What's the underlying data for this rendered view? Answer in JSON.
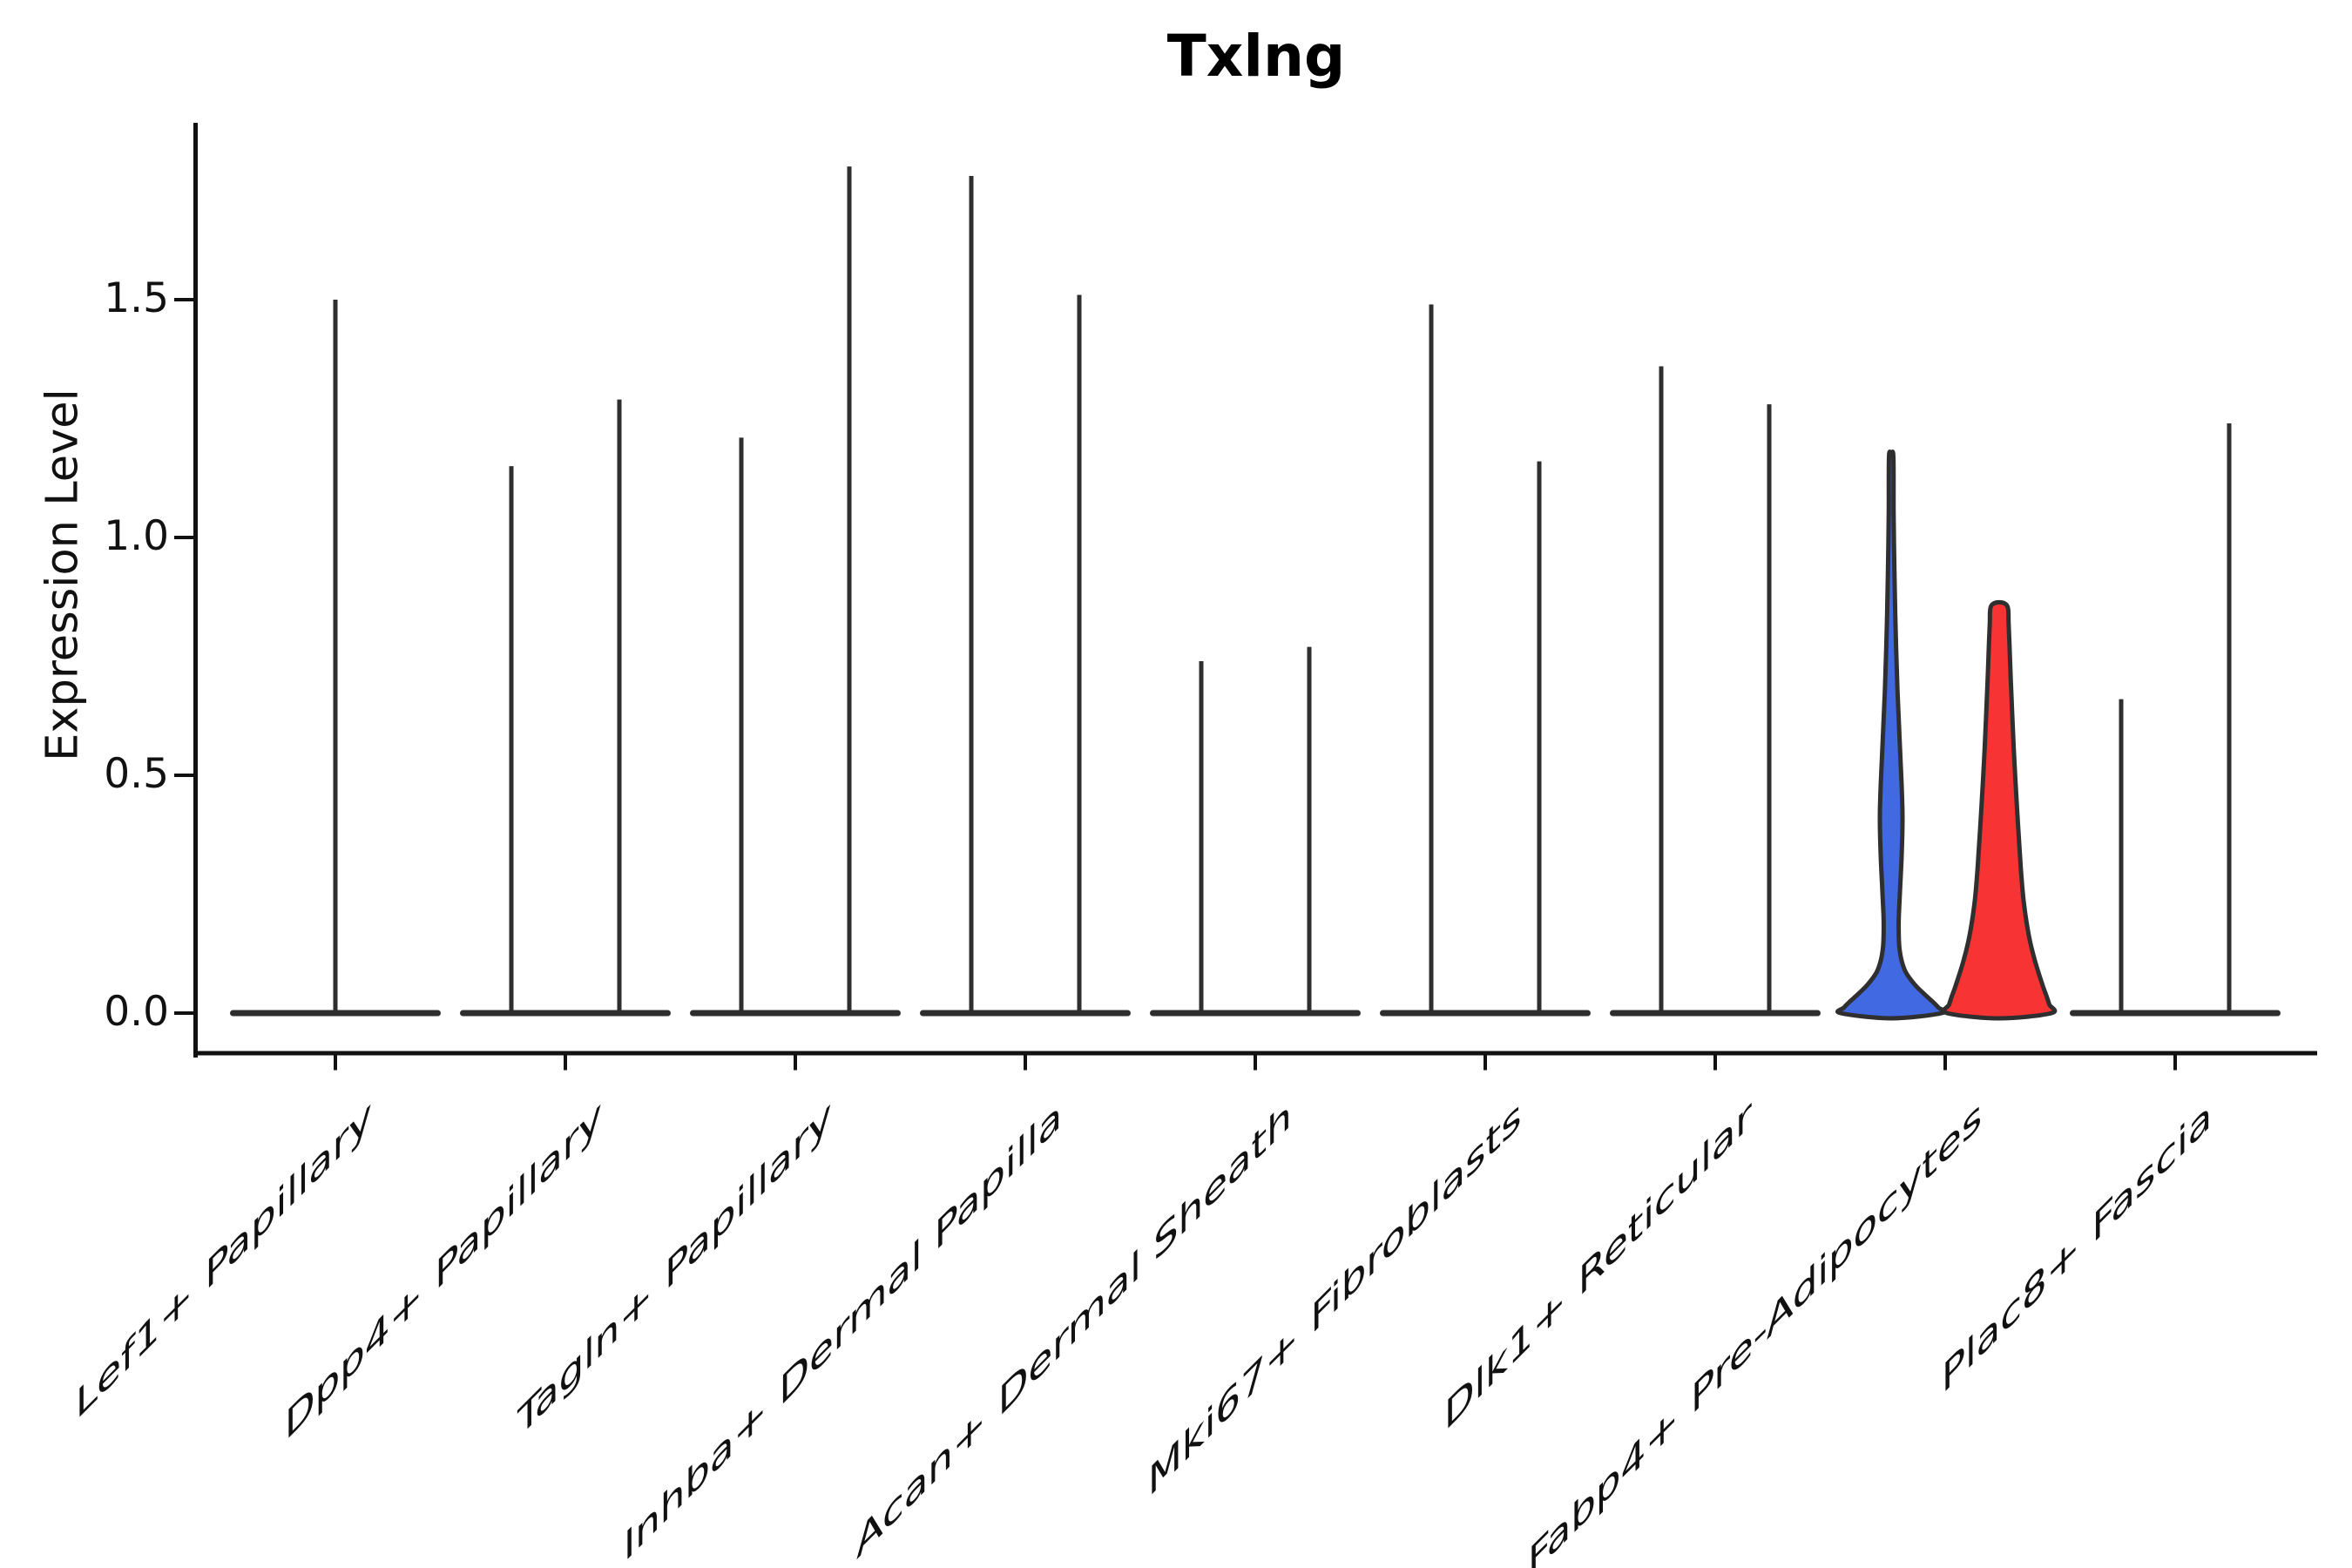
{
  "figure": {
    "title": "Txlng",
    "ylabel": "Expression Level"
  },
  "chart_data": {
    "type": "violin",
    "title": "Txlng",
    "xlabel": "",
    "ylabel": "Expression Level",
    "ytick_labels": [
      "0.0",
      "0.5",
      "1.0",
      "1.5"
    ],
    "ytick_values": [
      0.0,
      0.5,
      1.0,
      1.5
    ],
    "ylim": [
      -0.09,
      1.87
    ],
    "grid": false,
    "legend_position": "none",
    "split_violins": true,
    "colors": {
      "spike": "#2e2e2e",
      "outline": "#2f2f2f",
      "axis": "#111111",
      "left_fill": "#4169E1",
      "right_fill": "#F73333"
    },
    "categories": [
      "Lef1+ Papillary",
      "Dpp4+ Papillary",
      "Tagln+ Papillary",
      "Inhba+ Dermal Papilla",
      "Acan+ Dermal Sheath",
      "Mki67+ Fibroblasts",
      "Dlk1+ Reticular",
      "Fabp4+ Pre-Adipocytes",
      "Plac8+ Fascia"
    ],
    "violins": [
      {
        "category": "Lef1+ Papillary",
        "layout": "single",
        "single": {
          "max": 1.5,
          "style": "spike"
        }
      },
      {
        "category": "Dpp4+ Papillary",
        "layout": "split",
        "left": {
          "max": 1.15,
          "style": "spike"
        },
        "right": {
          "max": 1.29,
          "style": "spike"
        }
      },
      {
        "category": "Tagln+ Papillary",
        "layout": "split",
        "left": {
          "max": 1.21,
          "style": "spike"
        },
        "right": {
          "max": 1.78,
          "style": "spike"
        }
      },
      {
        "category": "Inhba+ Dermal Papilla",
        "layout": "split",
        "left": {
          "max": 1.76,
          "style": "spike"
        },
        "right": {
          "max": 1.51,
          "style": "spike"
        }
      },
      {
        "category": "Acan+ Dermal Sheath",
        "layout": "split",
        "left": {
          "max": 0.74,
          "style": "spike"
        },
        "right": {
          "max": 0.77,
          "style": "spike"
        }
      },
      {
        "category": "Mki67+ Fibroblasts",
        "layout": "split",
        "left": {
          "max": 1.49,
          "style": "spike"
        },
        "right": {
          "max": 1.16,
          "style": "spike"
        }
      },
      {
        "category": "Dlk1+ Reticular",
        "layout": "split",
        "left": {
          "max": 1.36,
          "style": "spike"
        },
        "right": {
          "max": 1.28,
          "style": "spike"
        }
      },
      {
        "category": "Fabp4+ Pre-Adipocytes",
        "layout": "split",
        "left": {
          "max": 1.17,
          "style": "filled",
          "fill": "#4169E1",
          "profile": [
            [
              1.17,
              2.5
            ],
            [
              1.05,
              2.8
            ],
            [
              0.92,
              3.8
            ],
            [
              0.8,
              5.2
            ],
            [
              0.68,
              7.2
            ],
            [
              0.57,
              9.8
            ],
            [
              0.48,
              12.0
            ],
            [
              0.41,
              13.0
            ],
            [
              0.33,
              12.0
            ],
            [
              0.26,
              10.2
            ],
            [
              0.21,
              8.9
            ],
            [
              0.175,
              8.6
            ],
            [
              0.14,
              9.3
            ],
            [
              0.11,
              12.0
            ],
            [
              0.085,
              17.0
            ],
            [
              0.06,
              27.0
            ],
            [
              0.04,
              38.0
            ],
            [
              0.025,
              47.0
            ],
            [
              0.012,
              54.0
            ],
            [
              0.0,
              58.0
            ]
          ]
        },
        "right": {
          "max": 0.86,
          "style": "filled",
          "fill": "#F73333",
          "profile": [
            [
              0.855,
              9.5
            ],
            [
              0.82,
              10.8
            ],
            [
              0.76,
              12.1
            ],
            [
              0.7,
              13.3
            ],
            [
              0.63,
              14.9
            ],
            [
              0.56,
              16.6
            ],
            [
              0.49,
              18.6
            ],
            [
              0.42,
              20.8
            ],
            [
              0.35,
              23.2
            ],
            [
              0.29,
              25.4
            ],
            [
              0.24,
              27.8
            ],
            [
              0.19,
              31.5
            ],
            [
              0.15,
              35.5
            ],
            [
              0.11,
              41.0
            ],
            [
              0.08,
              46.0
            ],
            [
              0.055,
              50.5
            ],
            [
              0.035,
              54.5
            ],
            [
              0.018,
              57.5
            ],
            [
              0.0,
              60.0
            ]
          ]
        }
      },
      {
        "category": "Plac8+ Fascia",
        "layout": "split",
        "left": {
          "max": 0.66,
          "style": "spike"
        },
        "right": {
          "max": 1.24,
          "style": "spike"
        }
      }
    ]
  }
}
